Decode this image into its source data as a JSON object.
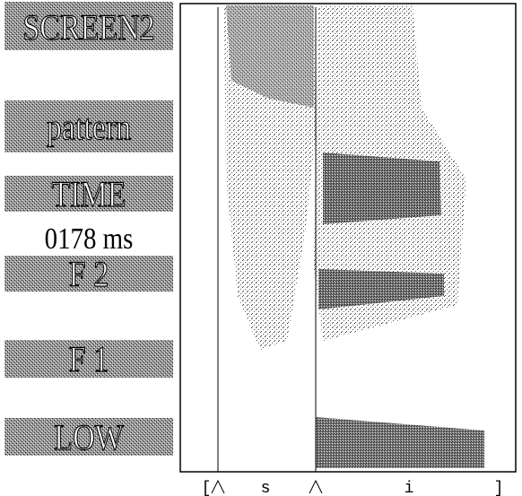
{
  "sidebar": {
    "title": "SCREEN2",
    "mode": "pattern",
    "time_label": "TIME",
    "time_value": "0178 ms",
    "buttons": [
      "F 2",
      "F 1",
      "LOW"
    ]
  },
  "segment_labels": [
    "[",
    "s",
    "i",
    "]"
  ]
}
